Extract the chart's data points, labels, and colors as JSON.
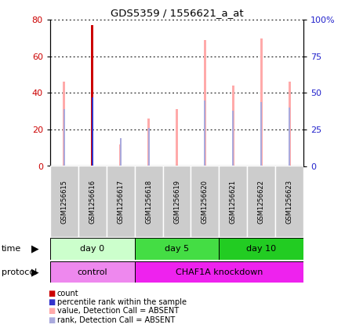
{
  "title": "GDS5359 / 1556621_a_at",
  "samples": [
    "GSM1256615",
    "GSM1256616",
    "GSM1256617",
    "GSM1256618",
    "GSM1256619",
    "GSM1256620",
    "GSM1256621",
    "GSM1256622",
    "GSM1256623"
  ],
  "count_values": [
    0,
    77,
    0,
    0,
    0,
    0,
    0,
    0,
    0
  ],
  "percentile_rank_values": [
    0,
    47,
    0,
    0,
    0,
    0,
    0,
    0,
    0
  ],
  "value_absent": [
    46,
    0,
    12,
    26,
    31,
    69,
    44,
    70,
    46
  ],
  "rank_absent": [
    39,
    47,
    19,
    26,
    0,
    45,
    38,
    44,
    40
  ],
  "count_color": "#cc0000",
  "percentile_color": "#3333cc",
  "value_absent_color": "#ffaaaa",
  "rank_absent_color": "#aaaadd",
  "ylim_left": [
    0,
    80
  ],
  "ylim_right": [
    0,
    100
  ],
  "yticks_left": [
    0,
    20,
    40,
    60,
    80
  ],
  "yticks_right": [
    0,
    25,
    50,
    75,
    100
  ],
  "ytick_labels_right": [
    "0",
    "25",
    "50",
    "75",
    "100%"
  ],
  "time_groups": [
    {
      "label": "day 0",
      "start": 0,
      "end": 3,
      "color": "#ccffcc"
    },
    {
      "label": "day 5",
      "start": 3,
      "end": 6,
      "color": "#44dd44"
    },
    {
      "label": "day 10",
      "start": 6,
      "end": 9,
      "color": "#22cc22"
    }
  ],
  "protocol_groups": [
    {
      "label": "control",
      "start": 0,
      "end": 3,
      "color": "#ee88ee"
    },
    {
      "label": "CHAF1A knockdown",
      "start": 3,
      "end": 9,
      "color": "#ee22ee"
    }
  ],
  "tick_label_color_left": "#cc0000",
  "tick_label_color_right": "#2222cc",
  "legend_items": [
    {
      "color": "#cc0000",
      "label": "count"
    },
    {
      "color": "#3333cc",
      "label": "percentile rank within the sample"
    },
    {
      "color": "#ffaaaa",
      "label": "value, Detection Call = ABSENT"
    },
    {
      "color": "#aaaadd",
      "label": "rank, Detection Call = ABSENT"
    }
  ],
  "fig_width": 4.4,
  "fig_height": 4.23,
  "dpi": 100
}
